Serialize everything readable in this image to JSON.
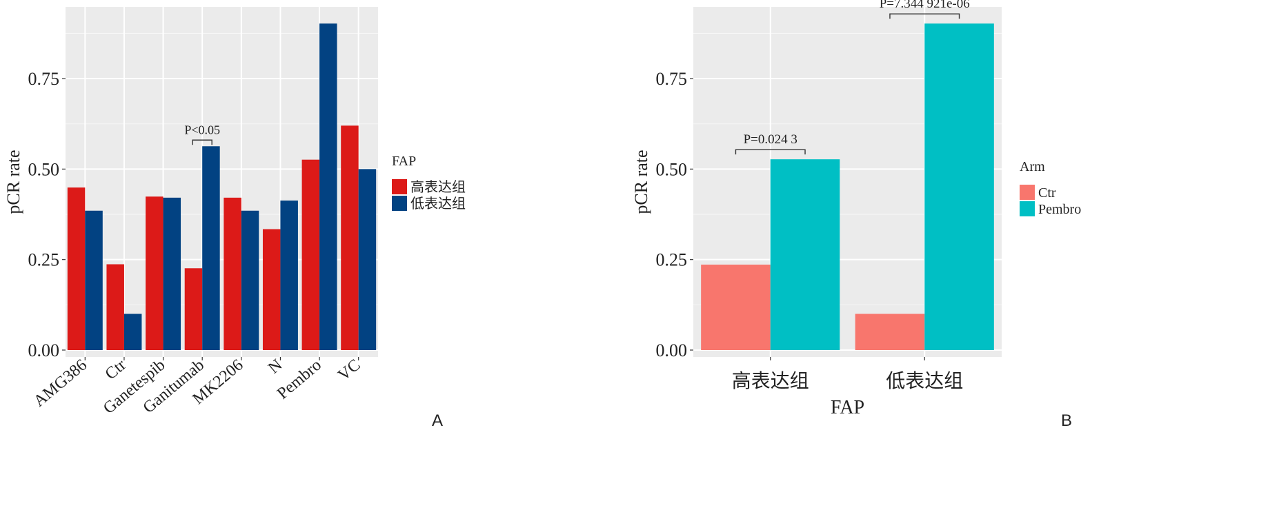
{
  "chart_data": [
    {
      "type": "bar",
      "panel": "A",
      "title": "",
      "xlabel": "",
      "ylabel": "pCR rate",
      "ylim": [
        0,
        0.9
      ],
      "yticks": [
        "0.00",
        "0.25",
        "0.50",
        "0.75"
      ],
      "ytick_values": [
        0,
        0.25,
        0.5,
        0.75
      ],
      "grid": true,
      "legend_title": "FAP",
      "legend_position": "right",
      "categories": [
        "AMG386",
        "Ctr",
        "Ganetespib",
        "Ganitumab",
        "MK2206",
        "N",
        "Pembro",
        "VC"
      ],
      "series": [
        {
          "name": "高表达组",
          "color": "#dc1a18",
          "values": [
            0.449,
            0.237,
            0.424,
            0.226,
            0.421,
            0.334,
            0.526,
            0.62
          ]
        },
        {
          "name": "低表达组",
          "color": "#024282",
          "values": [
            0.385,
            0.1,
            0.421,
            0.563,
            0.385,
            0.413,
            0.902,
            0.5
          ]
        }
      ],
      "annotations": [
        {
          "text": "P<0.05",
          "category": "Ganitumab"
        }
      ]
    },
    {
      "type": "bar",
      "panel": "B",
      "title": "",
      "xlabel": "FAP",
      "ylabel": "pCR rate",
      "ylim": [
        0,
        0.9
      ],
      "yticks": [
        "0.00",
        "0.25",
        "0.50",
        "0.75"
      ],
      "ytick_values": [
        0,
        0.25,
        0.5,
        0.75
      ],
      "grid": true,
      "legend_title": "Arm",
      "legend_position": "right",
      "categories": [
        "高表达组",
        "低表达组"
      ],
      "series": [
        {
          "name": "Ctr",
          "color": "#f8766d",
          "values": [
            0.236,
            0.1
          ]
        },
        {
          "name": "Pembro",
          "color": "#00bfc4",
          "values": [
            0.527,
            0.902
          ]
        }
      ],
      "annotations": [
        {
          "text": "P=0.024 3",
          "category": "高表达组"
        },
        {
          "text": "P=7.344 921e-06",
          "category": "低表达组"
        }
      ]
    }
  ]
}
